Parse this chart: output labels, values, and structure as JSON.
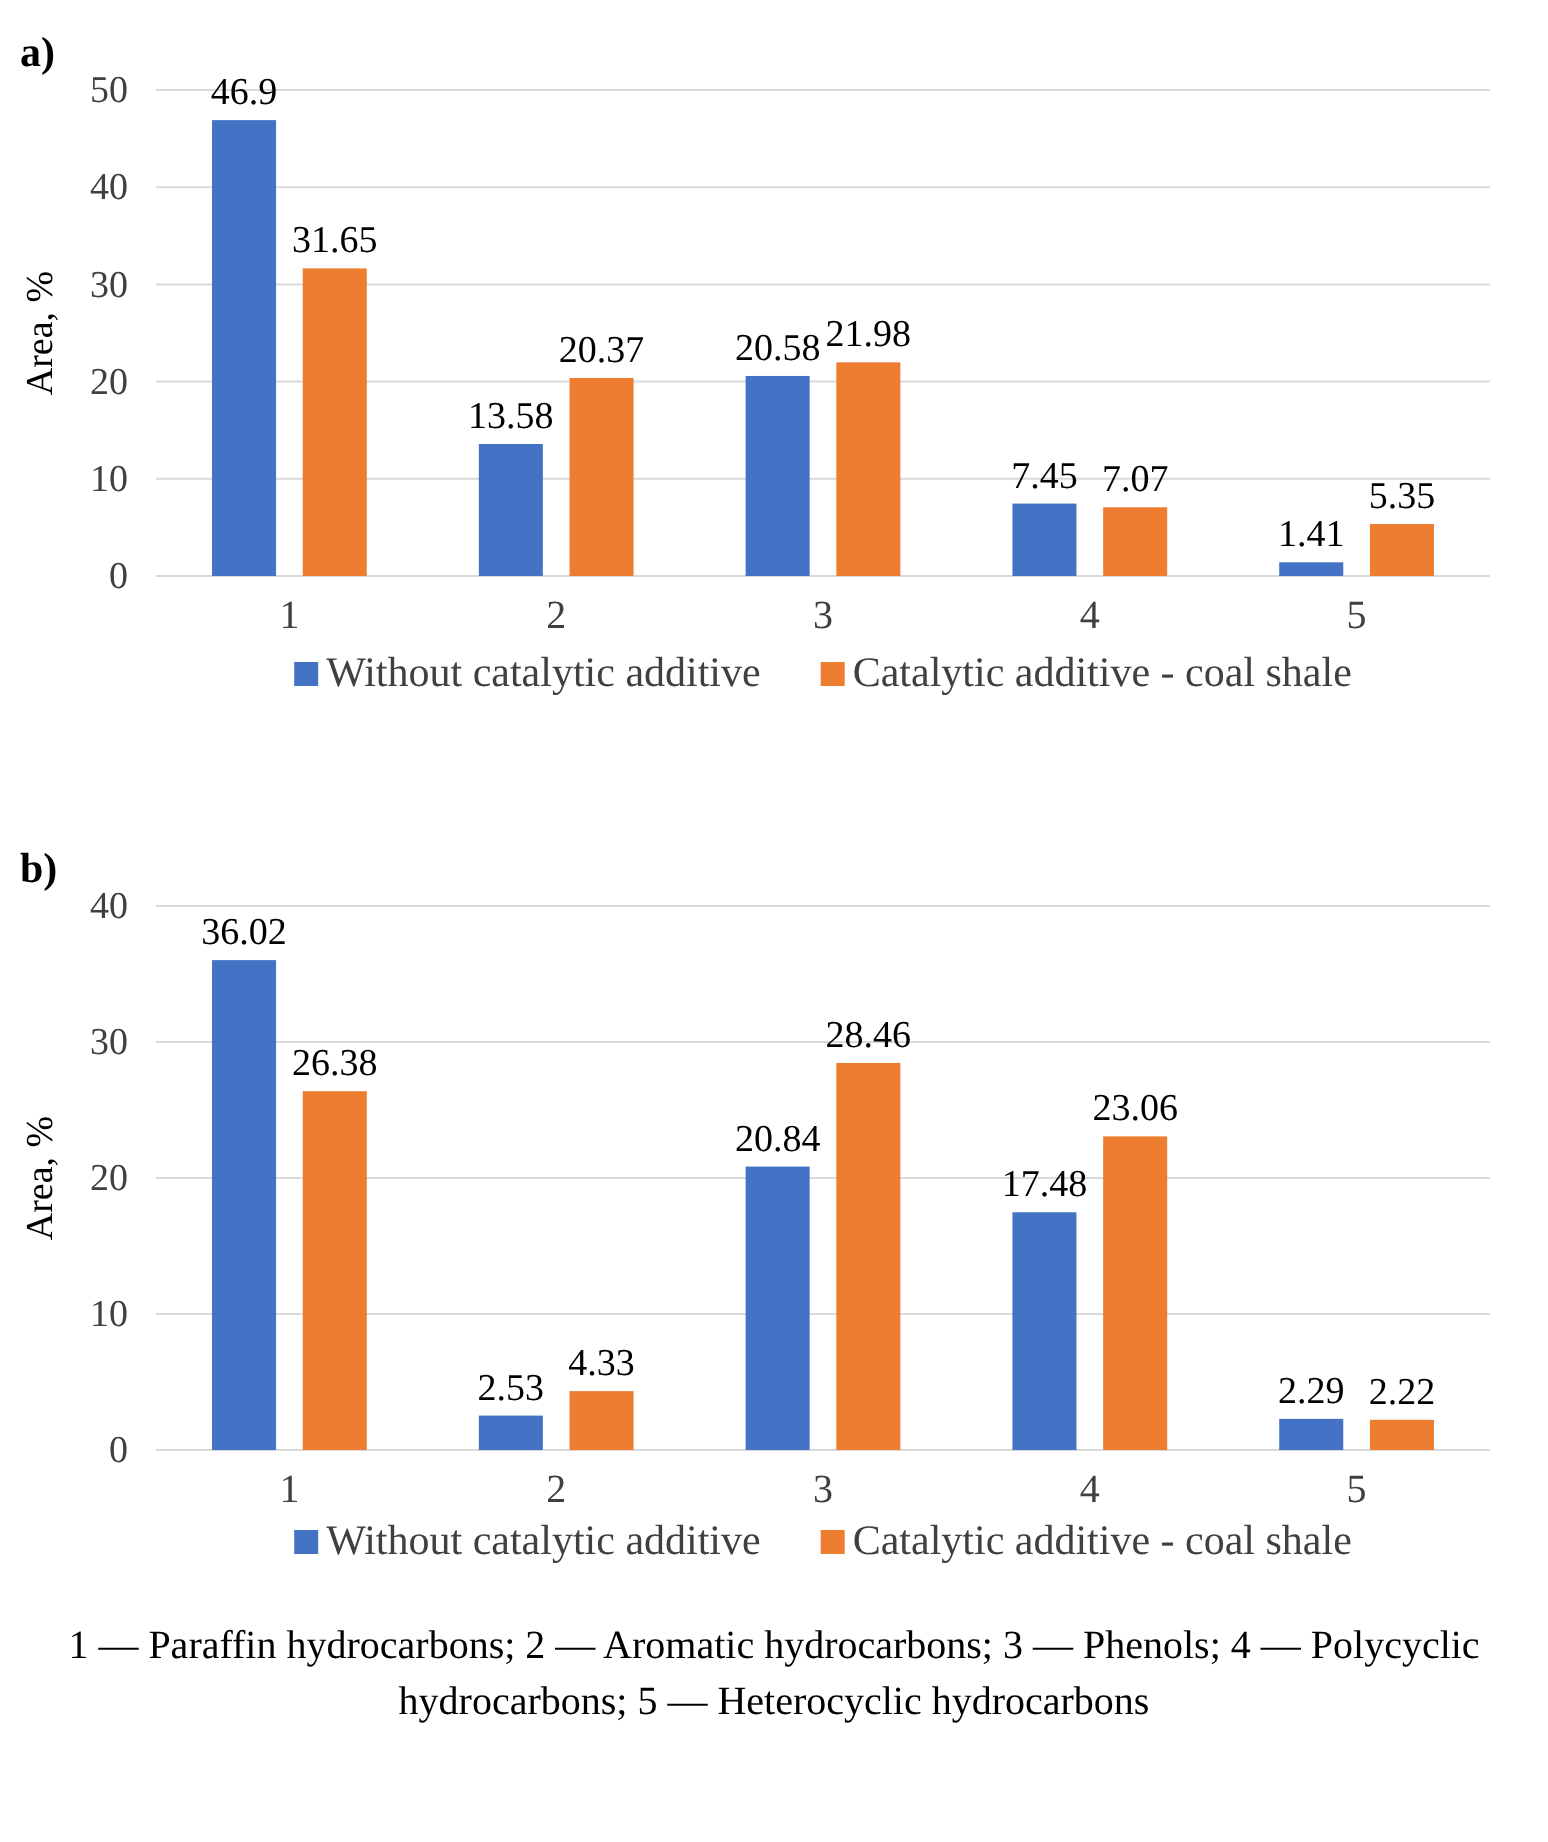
{
  "chart_data": [
    {
      "type": "bar",
      "title": "a)",
      "ylabel": "Area, %",
      "categories": [
        "1",
        "2",
        "3",
        "4",
        "5"
      ],
      "series": [
        {
          "name": "Without catalytic additive",
          "color": "#4472c4",
          "values": [
            46.9,
            13.58,
            20.58,
            7.45,
            1.41
          ]
        },
        {
          "name": "Catalytic additive - coal shale",
          "color": "#ed7d31",
          "values": [
            31.65,
            20.37,
            21.98,
            7.07,
            5.35
          ]
        }
      ],
      "ylim": [
        0,
        50
      ],
      "yticks": [
        0,
        10,
        20,
        30,
        40,
        50
      ],
      "grid": "y",
      "legend": "bottom",
      "data_labels": true
    },
    {
      "type": "bar",
      "title": "b)",
      "ylabel": "Area, %",
      "categories": [
        "1",
        "2",
        "3",
        "4",
        "5"
      ],
      "series": [
        {
          "name": "Without catalytic additive",
          "color": "#4472c4",
          "values": [
            36.02,
            2.53,
            20.84,
            17.48,
            2.29
          ]
        },
        {
          "name": "Catalytic additive - coal shale",
          "color": "#ed7d31",
          "values": [
            26.38,
            4.33,
            28.46,
            23.06,
            2.22
          ]
        }
      ],
      "ylim": [
        0,
        40
      ],
      "yticks": [
        0,
        10,
        20,
        30,
        40
      ],
      "grid": "y",
      "legend": "bottom",
      "data_labels": true,
      "annotations": [
        "1 — Paraffin hydrocarbons; 2 — Aromatic hydrocarbons; 3 — Phenols; 4 — Polycyclic hydrocarbons; 5 — Heterocyclic hydrocarbons"
      ]
    }
  ]
}
